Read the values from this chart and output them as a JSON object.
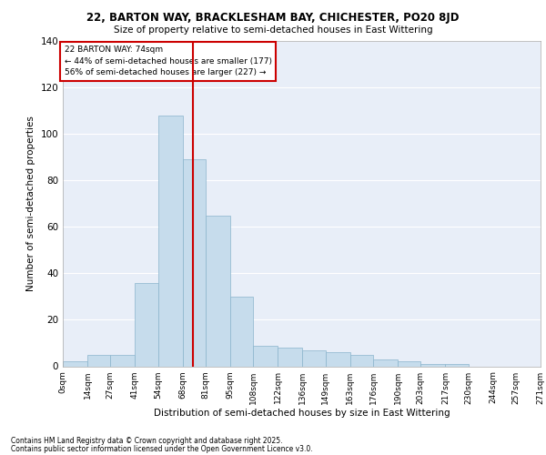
{
  "title_line1": "22, BARTON WAY, BRACKLESHAM BAY, CHICHESTER, PO20 8JD",
  "title_line2": "Size of property relative to semi-detached houses in East Wittering",
  "xlabel": "Distribution of semi-detached houses by size in East Wittering",
  "ylabel": "Number of semi-detached properties",
  "footnote1": "Contains HM Land Registry data © Crown copyright and database right 2025.",
  "footnote2": "Contains public sector information licensed under the Open Government Licence v3.0.",
  "property_label": "22 BARTON WAY: 74sqm",
  "annotation_line1": "← 44% of semi-detached houses are smaller (177)",
  "annotation_line2": "56% of semi-detached houses are larger (227) →",
  "property_sqm": 74,
  "bin_edges": [
    0,
    14,
    27,
    41,
    54,
    68,
    81,
    95,
    108,
    122,
    136,
    149,
    163,
    176,
    190,
    203,
    217,
    230,
    244,
    257,
    271
  ],
  "bin_labels": [
    "0sqm",
    "14sqm",
    "27sqm",
    "41sqm",
    "54sqm",
    "68sqm",
    "81sqm",
    "95sqm",
    "108sqm",
    "122sqm",
    "136sqm",
    "149sqm",
    "163sqm",
    "176sqm",
    "190sqm",
    "203sqm",
    "217sqm",
    "230sqm",
    "244sqm",
    "257sqm",
    "271sqm"
  ],
  "counts": [
    2,
    5,
    5,
    36,
    108,
    89,
    65,
    30,
    9,
    8,
    7,
    6,
    5,
    3,
    2,
    1,
    1,
    0,
    0,
    0
  ],
  "bar_color": "#c6dcec",
  "bar_edge_color": "#8ab4cc",
  "vline_color": "#cc0000",
  "annotation_box_color": "#cc0000",
  "background_color": "#e8eef8",
  "ylim": [
    0,
    140
  ],
  "yticks": [
    0,
    20,
    40,
    60,
    80,
    100,
    120,
    140
  ],
  "fig_width": 6.0,
  "fig_height": 5.0,
  "dpi": 100
}
